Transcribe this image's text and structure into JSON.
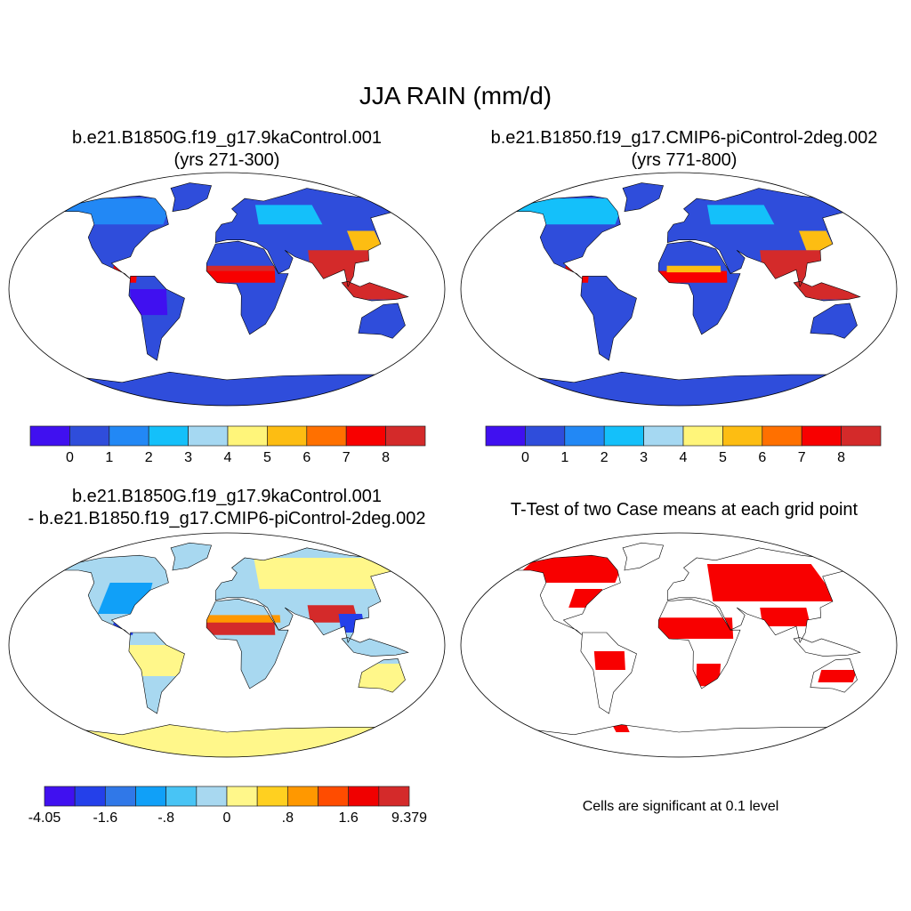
{
  "title": "JJA RAIN (mm/d)",
  "panels": [
    {
      "id": "case1",
      "title_line1": "b.e21.B1850G.f19_g17.9kaControl.001",
      "title_line2": "(yrs 271-300)"
    },
    {
      "id": "case2",
      "title_line1": "b.e21.B1850.f19_g17.CMIP6-piControl-2deg.002",
      "title_line2": "(yrs 771-800)"
    },
    {
      "id": "diff",
      "title_line1": "b.e21.B1850G.f19_g17.9kaControl.001",
      "title_line2": "- b.e21.B1850.f19_g17.CMIP6-piControl-2deg.002"
    },
    {
      "id": "ttest",
      "title_line1": "T-Test of two Case means at each grid point",
      "footnote": "Cells are significant at 0.1 level"
    }
  ],
  "chart_data": [
    {
      "type": "heatmap",
      "panel": "case1",
      "variable": "JJA RAIN (mm/d)",
      "colorbar": {
        "labels": [
          "0",
          "1",
          "2",
          "3",
          "4",
          "5",
          "6",
          "7",
          "8"
        ],
        "colors": [
          "#4010f0",
          "#2f4ddb",
          "#2288f5",
          "#14c0fa",
          "#a5d8f2",
          "#fff57a",
          "#fdbd12",
          "#ff7000",
          "#f80000",
          "#d42a2a"
        ]
      }
    },
    {
      "type": "heatmap",
      "panel": "case2",
      "variable": "JJA RAIN (mm/d)",
      "colorbar": {
        "labels": [
          "0",
          "1",
          "2",
          "3",
          "4",
          "5",
          "6",
          "7",
          "8"
        ],
        "colors": [
          "#4010f0",
          "#2f4ddb",
          "#2288f5",
          "#14c0fa",
          "#a5d8f2",
          "#fff57a",
          "#fdbd12",
          "#ff7000",
          "#f80000",
          "#d42a2a"
        ]
      }
    },
    {
      "type": "heatmap",
      "panel": "diff",
      "variable": "JJA RAIN difference (mm/d)",
      "colorbar": {
        "labels": [
          "-4.05",
          "-1.6",
          "-.8",
          "0",
          ".8",
          "1.6",
          "9.379"
        ],
        "colors": [
          "#4010f0",
          "#2440ea",
          "#3078e8",
          "#10a0f8",
          "#48c4f5",
          "#a8d8f0",
          "#fff78a",
          "#ffd020",
          "#ff9800",
          "#ff4c00",
          "#f00000",
          "#d42a2a"
        ]
      }
    },
    {
      "type": "heatmap",
      "panel": "ttest",
      "significance_level": 0.1,
      "significant_color": "#f80000"
    }
  ]
}
